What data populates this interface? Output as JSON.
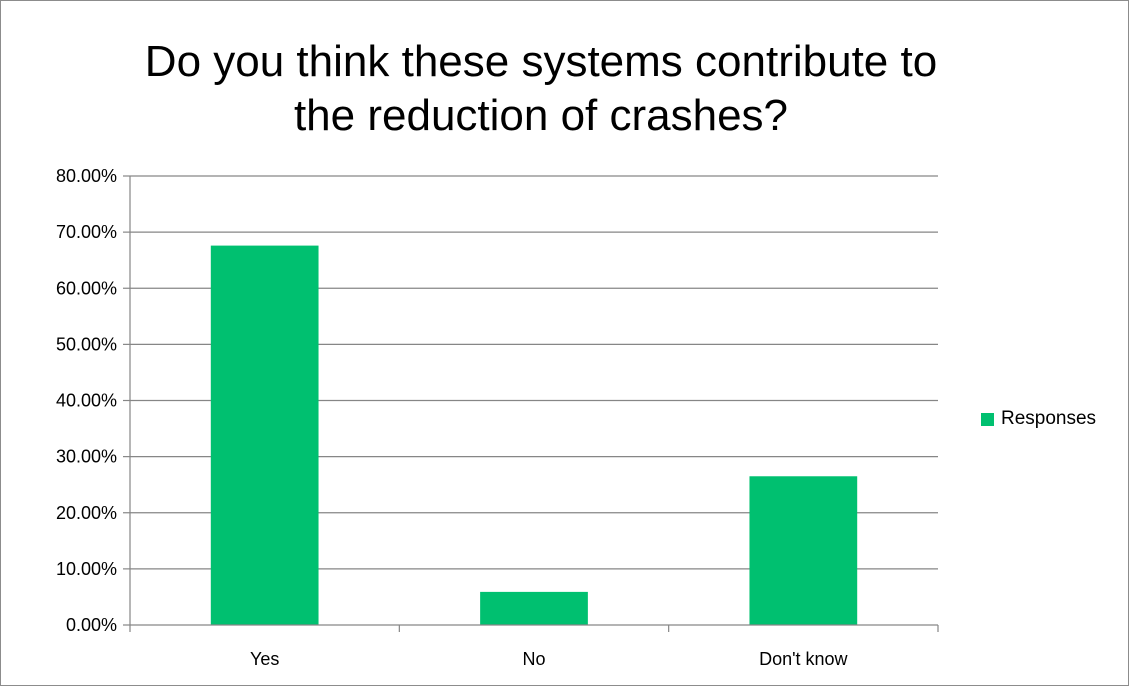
{
  "chart_data": {
    "type": "bar",
    "title": "Do you think these systems contribute to\nthe reduction of crashes?",
    "categories": [
      "Yes",
      "No",
      "Don't know"
    ],
    "series": [
      {
        "name": "Responses",
        "values": [
          67.6,
          5.9,
          26.5
        ],
        "color": "#00c070"
      }
    ],
    "y_tick_labels": [
      "0.00%",
      "10.00%",
      "20.00%",
      "30.00%",
      "40.00%",
      "50.00%",
      "60.00%",
      "70.00%",
      "80.00%"
    ],
    "ylim": [
      0,
      80
    ],
    "y_tick_step": 10,
    "grid": true,
    "legend_position": "right"
  }
}
